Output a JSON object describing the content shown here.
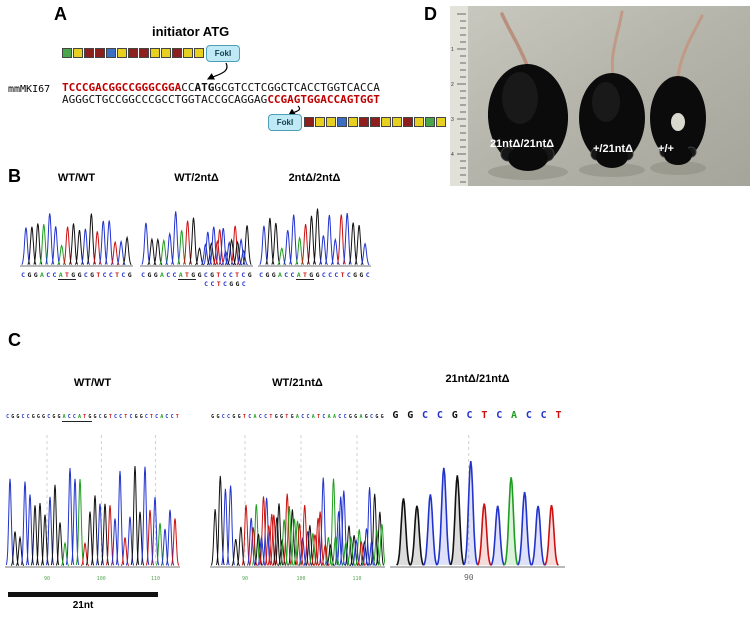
{
  "base_colors": {
    "A": "#1e9e1e",
    "C": "#2233cc",
    "G": "#111111",
    "T": "#cc1111"
  },
  "panels": {
    "A": {
      "label": "A",
      "title": "initiator ATG",
      "gene_label": "mmMKI67",
      "fok1_label": "FokI",
      "exon_palette": {
        "green": "#4aa64a",
        "yellow": "#e8d020",
        "darkred": "#8d1f1f",
        "blue": "#3a6fc4"
      },
      "exon_row_top": [
        "green",
        "yellow",
        "darkred",
        "darkred",
        "blue",
        "yellow",
        "darkred",
        "darkred",
        "yellow",
        "yellow",
        "darkred",
        "yellow",
        "yellow"
      ],
      "exon_row_bottom": [
        "darkred",
        "yellow",
        "yellow",
        "blue",
        "yellow",
        "darkred",
        "darkred",
        "yellow",
        "yellow",
        "darkred",
        "yellow",
        "green",
        "yellow"
      ],
      "seq_top": [
        {
          "text": "TCCCGACGGCCGGGCGGA",
          "color": "#c00000",
          "bold": true
        },
        {
          "text": "CC",
          "color": "#111111",
          "bold": false
        },
        {
          "text": "ATG",
          "color": "#111111",
          "bold": true
        },
        {
          "text": "GCGTCCTCGGCTCACCTGGTCACCA",
          "color": "#111111",
          "bold": false
        }
      ],
      "seq_bottom": [
        {
          "text": "AGGGCTGCCGGCCCGCCTGGTACCGCAGGAG",
          "color": "#111111",
          "bold": false
        },
        {
          "text": "CCGAGTGGACCAGTGGT",
          "color": "#c00000",
          "bold": true
        }
      ]
    },
    "B": {
      "label": "B",
      "traces": [
        {
          "genotype": "WT/WT",
          "sequence": "CGGACCATGGCGTCCTCG",
          "underline_start": 6,
          "underline_len": 3,
          "mixed": false
        },
        {
          "genotype": "WT/2ntΔ",
          "sequence": "CGGACCATGGCGTCCTCG",
          "secondary": "CCTCGGC",
          "secondary_from": 10,
          "underline_start": 6,
          "underline_len": 3,
          "mixed": true
        },
        {
          "genotype": "2ntΔ/2ntΔ",
          "sequence": "CGGACCATGGCCCTCGGC",
          "underline_start": 6,
          "underline_len": 3,
          "mixed": false
        }
      ]
    },
    "C": {
      "label": "C",
      "bar_label": "21nt",
      "traces": [
        {
          "genotype": "WT/WT",
          "sequence": "CGGCCGGGCGGACCATGGCGTCCTCGGCTCACCT",
          "positions": [
            "90",
            "100",
            "110"
          ],
          "underline_start": 11,
          "underline_len": 6,
          "mixed": false
        },
        {
          "genotype": "WT/21ntΔ",
          "sequence": "GGCCGGTCACCTGGTGACCATCAACCGGAGCGG",
          "positions": [
            "90",
            "100",
            "110"
          ],
          "mixed": true,
          "mixed_from": 7
        },
        {
          "genotype": "21ntΔ/21ntΔ",
          "sequence": "GGCCGCTCACCT",
          "positions": [
            "90"
          ],
          "mixed": false,
          "large": true
        }
      ]
    },
    "D": {
      "label": "D",
      "mouse_labels": [
        "21ntΔ/21ntΔ",
        "+/21ntΔ",
        "+/+"
      ]
    }
  }
}
